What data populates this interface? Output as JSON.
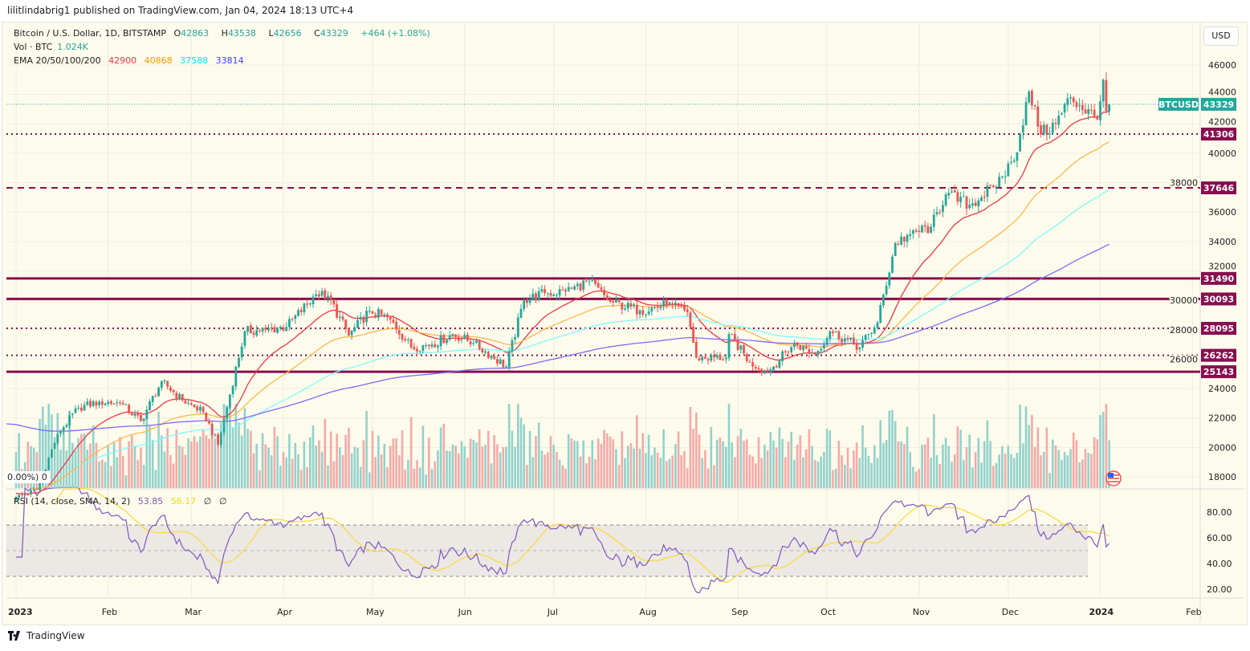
{
  "publish_line": "lilitlindabrig1 published on TradingView.com, Jan 04, 2024 18:13 UTC+4",
  "legend": {
    "symbol": "Bitcoin / U.S. Dollar, 1D, BITSTAMP",
    "o_label": "O",
    "o": "42863",
    "h_label": "H",
    "h": "43538",
    "l_label": "L",
    "l": "42656",
    "c_label": "C",
    "c": "43329",
    "change": "+464 (+1.08%)",
    "vol_label": "Vol · BTC",
    "vol": "1.024K",
    "ema_label": "EMA 20/50/100/200",
    "ema20": "42900",
    "ema50": "40868",
    "ema100": "37588",
    "ema200": "33814",
    "rsi_label": "RSI (14, close, SMA, 14, 2)",
    "rsi": "53.85",
    "rsi_sma": "56.17",
    "rsi_x1": "∅",
    "rsi_x2": "∅"
  },
  "overlay_text": "0.00%) 0",
  "currency_button": "USD",
  "symbol_tag": "BTCUSD",
  "last_price": "43329",
  "footer_brand": "TradingView",
  "colors": {
    "up": "#26a69a",
    "down": "#ef5350",
    "level": "#880e4f",
    "ema20": "#f23645",
    "ema50": "#ffb74d",
    "ema100": "#7df9ff",
    "ema200": "#7b6cf6",
    "rsi": "#7e57c2",
    "rsi_sma": "#fdd835"
  },
  "chart_data": {
    "type": "candlestick",
    "price_axis": {
      "ticks": [
        "46000",
        "44000",
        "42000",
        "40000",
        "38000",
        "36000",
        "34000",
        "32000",
        "30000",
        "28000",
        "26000",
        "24000",
        "22000",
        "20000",
        "18000"
      ],
      "range": [
        17500,
        47000
      ]
    },
    "rsi_axis": {
      "ticks": [
        "80.00",
        "60.00",
        "40.00",
        "20.00"
      ],
      "bands": [
        70,
        50,
        30
      ]
    },
    "time_axis": [
      {
        "label": "2023",
        "date": "2023-01-01",
        "bold": true
      },
      {
        "label": "Feb",
        "date": "2023-02-01"
      },
      {
        "label": "Mar",
        "date": "2023-03-01"
      },
      {
        "label": "Apr",
        "date": "2023-04-01"
      },
      {
        "label": "May",
        "date": "2023-05-01"
      },
      {
        "label": "Jun",
        "date": "2023-06-01"
      },
      {
        "label": "Jul",
        "date": "2023-07-01"
      },
      {
        "label": "Aug",
        "date": "2023-08-01"
      },
      {
        "label": "Sep",
        "date": "2023-09-01"
      },
      {
        "label": "Oct",
        "date": "2023-10-01"
      },
      {
        "label": "Nov",
        "date": "2023-11-01"
      },
      {
        "label": "Dec",
        "date": "2023-12-01"
      },
      {
        "label": "2024",
        "date": "2024-01-01",
        "bold": true
      },
      {
        "label": "Feb",
        "date": "2024-02-01"
      }
    ],
    "levels": [
      {
        "price": 41306,
        "style": "dotted"
      },
      {
        "price": 37646,
        "style": "dashed"
      },
      {
        "price": 31490,
        "style": "solid"
      },
      {
        "price": 30093,
        "style": "solid"
      },
      {
        "price": 28095,
        "style": "dotted"
      },
      {
        "price": 26262,
        "style": "dotted"
      },
      {
        "price": 25143,
        "style": "solid"
      }
    ],
    "closes_approx": [
      {
        "date": "2023-01-01",
        "close": 16600
      },
      {
        "date": "2023-01-08",
        "close": 17100
      },
      {
        "date": "2023-01-15",
        "close": 20900
      },
      {
        "date": "2023-01-22",
        "close": 22700
      },
      {
        "date": "2023-01-29",
        "close": 23100
      },
      {
        "date": "2023-02-05",
        "close": 23000
      },
      {
        "date": "2023-02-12",
        "close": 21800
      },
      {
        "date": "2023-02-19",
        "close": 24500
      },
      {
        "date": "2023-02-26",
        "close": 23200
      },
      {
        "date": "2023-03-05",
        "close": 22400
      },
      {
        "date": "2023-03-10",
        "close": 20200
      },
      {
        "date": "2023-03-19",
        "close": 27900
      },
      {
        "date": "2023-03-26",
        "close": 28000
      },
      {
        "date": "2023-04-02",
        "close": 28200
      },
      {
        "date": "2023-04-12",
        "close": 30400
      },
      {
        "date": "2023-04-16",
        "close": 30300
      },
      {
        "date": "2023-04-23",
        "close": 27600
      },
      {
        "date": "2023-04-30",
        "close": 29300
      },
      {
        "date": "2023-05-07",
        "close": 28700
      },
      {
        "date": "2023-05-14",
        "close": 26800
      },
      {
        "date": "2023-05-21",
        "close": 27000
      },
      {
        "date": "2023-05-28",
        "close": 27700
      },
      {
        "date": "2023-06-04",
        "close": 27100
      },
      {
        "date": "2023-06-15",
        "close": 25500
      },
      {
        "date": "2023-06-21",
        "close": 30000
      },
      {
        "date": "2023-06-28",
        "close": 30500
      },
      {
        "date": "2023-07-05",
        "close": 30600
      },
      {
        "date": "2023-07-13",
        "close": 31300
      },
      {
        "date": "2023-07-20",
        "close": 29900
      },
      {
        "date": "2023-07-30",
        "close": 29300
      },
      {
        "date": "2023-08-08",
        "close": 29700
      },
      {
        "date": "2023-08-15",
        "close": 29200
      },
      {
        "date": "2023-08-18",
        "close": 26100
      },
      {
        "date": "2023-08-28",
        "close": 26100
      },
      {
        "date": "2023-08-29",
        "close": 27700
      },
      {
        "date": "2023-09-05",
        "close": 25800
      },
      {
        "date": "2023-09-11",
        "close": 25100
      },
      {
        "date": "2023-09-20",
        "close": 27100
      },
      {
        "date": "2023-09-27",
        "close": 26300
      },
      {
        "date": "2023-10-02",
        "close": 27900
      },
      {
        "date": "2023-10-12",
        "close": 26800
      },
      {
        "date": "2023-10-18",
        "close": 28500
      },
      {
        "date": "2023-10-24",
        "close": 33900
      },
      {
        "date": "2023-10-29",
        "close": 34500
      },
      {
        "date": "2023-11-05",
        "close": 35000
      },
      {
        "date": "2023-11-10",
        "close": 37200
      },
      {
        "date": "2023-11-18",
        "close": 36500
      },
      {
        "date": "2023-11-26",
        "close": 37700
      },
      {
        "date": "2023-12-03",
        "close": 39500
      },
      {
        "date": "2023-12-08",
        "close": 44200
      },
      {
        "date": "2023-12-12",
        "close": 41300
      },
      {
        "date": "2023-12-17",
        "close": 42000
      },
      {
        "date": "2023-12-22",
        "close": 43800
      },
      {
        "date": "2023-12-31",
        "close": 42300
      },
      {
        "date": "2024-01-02",
        "close": 45000
      },
      {
        "date": "2024-01-03",
        "close": 42865
      },
      {
        "date": "2024-01-04",
        "close": 43329
      }
    ]
  }
}
